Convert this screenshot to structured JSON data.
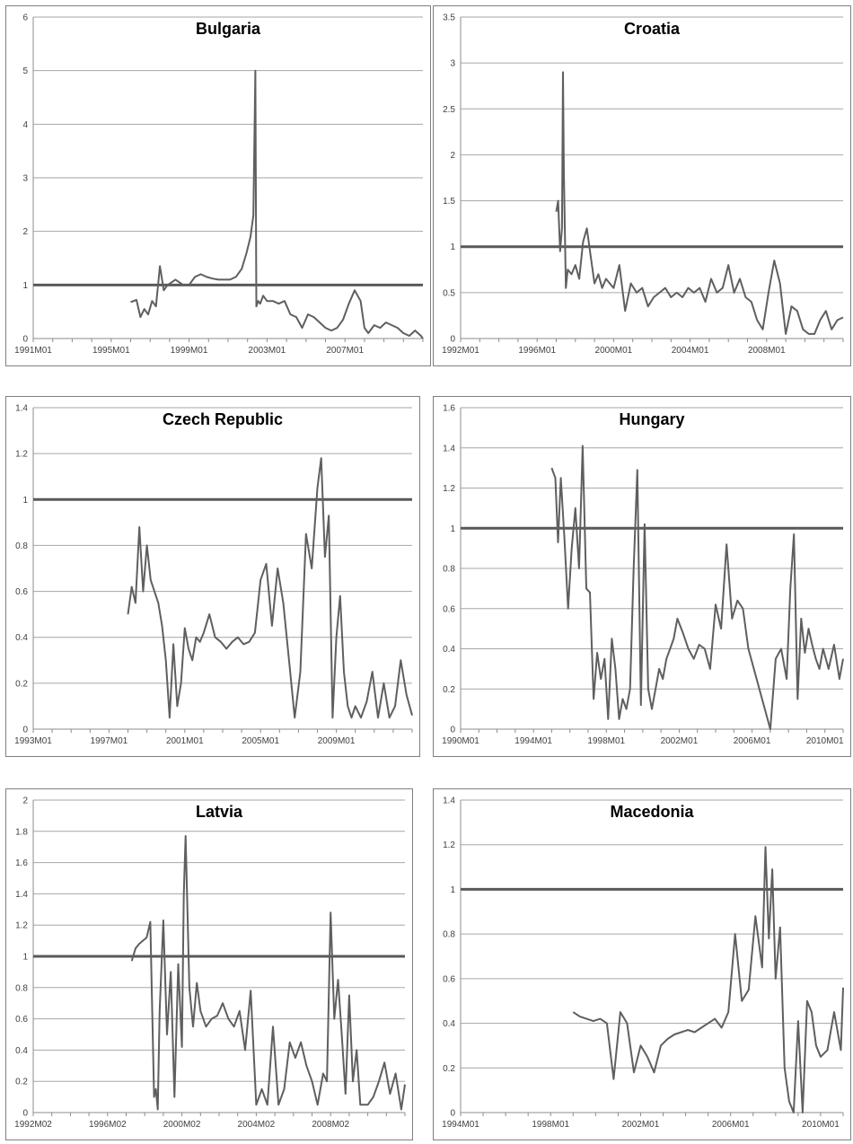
{
  "chart_data": [
    {
      "type": "line",
      "title": "Bulgaria",
      "ylim": [
        0,
        6
      ],
      "yticks": [
        "0",
        "1",
        "2",
        "3",
        "4",
        "5",
        "6"
      ],
      "xlim": [
        1991.0,
        2011.0
      ],
      "xticks": [
        "1991M01",
        "1995M01",
        "1999M01",
        "2003M01",
        "2007M01"
      ],
      "grid": true,
      "reference_line": 1,
      "series": [
        {
          "x": [
            1996.0,
            1996.3,
            1996.5,
            1996.7,
            1996.9,
            1997.1,
            1997.3,
            1997.5,
            1997.7,
            1997.9,
            1998.1,
            1998.3,
            1998.5,
            1998.7,
            1999.0,
            1999.3,
            1999.6,
            1999.9,
            2000.2,
            2000.5,
            2000.8,
            2001.1,
            2001.4,
            2001.7,
            2001.95,
            2002.15,
            2002.3,
            2002.4,
            2002.45,
            2002.55,
            2002.65,
            2002.8,
            2003.0,
            2003.3,
            2003.6,
            2003.9,
            2004.2,
            2004.5,
            2004.8,
            2005.1,
            2005.4,
            2005.7,
            2006.0,
            2006.3,
            2006.6,
            2006.9,
            2007.2,
            2007.5,
            2007.8,
            2008.0,
            2008.2,
            2008.5,
            2008.8,
            2009.1,
            2009.4,
            2009.7,
            2010.0,
            2010.3,
            2010.6,
            2010.9,
            2011.0
          ],
          "y": [
            0.68,
            0.72,
            0.4,
            0.55,
            0.45,
            0.7,
            0.6,
            1.35,
            0.9,
            1.0,
            1.05,
            1.1,
            1.05,
            1.0,
            1.0,
            1.15,
            1.2,
            1.15,
            1.12,
            1.1,
            1.1,
            1.1,
            1.15,
            1.3,
            1.6,
            1.9,
            2.3,
            5.0,
            0.6,
            0.7,
            0.65,
            0.8,
            0.7,
            0.7,
            0.65,
            0.7,
            0.45,
            0.4,
            0.2,
            0.45,
            0.4,
            0.3,
            0.2,
            0.15,
            0.2,
            0.35,
            0.65,
            0.9,
            0.7,
            0.2,
            0.1,
            0.25,
            0.2,
            0.3,
            0.25,
            0.2,
            0.1,
            0.05,
            0.15,
            0.05,
            0.0
          ]
        }
      ]
    },
    {
      "type": "line",
      "title": "Croatia",
      "ylim": [
        0,
        3.5
      ],
      "yticks": [
        "0",
        "0.5",
        "1",
        "1.5",
        "2",
        "2.5",
        "3",
        "3.5"
      ],
      "xlim": [
        1992.0,
        2012.0
      ],
      "xticks": [
        "1992M01",
        "1996M01",
        "2000M01",
        "2004M01",
        "2008M01"
      ],
      "grid": true,
      "reference_line": 1,
      "series": [
        {
          "x": [
            1997.0,
            1997.1,
            1997.2,
            1997.3,
            1997.35,
            1997.4,
            1997.5,
            1997.6,
            1997.8,
            1998.0,
            1998.2,
            1998.4,
            1998.6,
            1998.8,
            1999.0,
            1999.2,
            1999.4,
            1999.6,
            1999.8,
            2000.0,
            2000.3,
            2000.6,
            2000.9,
            2001.2,
            2001.5,
            2001.8,
            2002.1,
            2002.4,
            2002.7,
            2003.0,
            2003.3,
            2003.6,
            2003.9,
            2004.2,
            2004.5,
            2004.8,
            2005.1,
            2005.4,
            2005.7,
            2006.0,
            2006.3,
            2006.6,
            2006.9,
            2007.2,
            2007.5,
            2007.8,
            2008.1,
            2008.4,
            2008.7,
            2009.0,
            2009.3,
            2009.6,
            2009.9,
            2010.2,
            2010.5,
            2010.8,
            2011.1,
            2011.4,
            2011.7,
            2012.0
          ],
          "y": [
            1.38,
            1.5,
            0.95,
            1.2,
            2.9,
            1.8,
            0.55,
            0.75,
            0.7,
            0.8,
            0.65,
            1.05,
            1.2,
            0.9,
            0.6,
            0.7,
            0.55,
            0.65,
            0.6,
            0.55,
            0.8,
            0.3,
            0.6,
            0.5,
            0.55,
            0.35,
            0.45,
            0.5,
            0.55,
            0.45,
            0.5,
            0.45,
            0.55,
            0.5,
            0.55,
            0.4,
            0.65,
            0.5,
            0.55,
            0.8,
            0.5,
            0.65,
            0.45,
            0.4,
            0.2,
            0.1,
            0.5,
            0.85,
            0.6,
            0.05,
            0.35,
            0.3,
            0.1,
            0.05,
            0.05,
            0.2,
            0.3,
            0.1,
            0.2,
            0.23
          ]
        }
      ]
    },
    {
      "type": "line",
      "title": "Czech Republic",
      "ylim": [
        0,
        1.4
      ],
      "yticks": [
        "0",
        "0.2",
        "0.4",
        "0.6",
        "0.8",
        "1",
        "1.2",
        "1.4"
      ],
      "xlim": [
        1993.0,
        2013.0
      ],
      "xticks": [
        "1993M01",
        "1997M01",
        "2001M01",
        "2005M01",
        "2009M01"
      ],
      "grid": true,
      "reference_line": 1,
      "series": [
        {
          "x": [
            1998.0,
            1998.2,
            1998.4,
            1998.6,
            1998.8,
            1999.0,
            1999.2,
            1999.4,
            1999.6,
            1999.8,
            2000.0,
            2000.2,
            2000.4,
            2000.6,
            2000.8,
            2001.0,
            2001.2,
            2001.4,
            2001.6,
            2001.8,
            2002.0,
            2002.3,
            2002.6,
            2002.9,
            2003.2,
            2003.5,
            2003.8,
            2004.1,
            2004.4,
            2004.7,
            2005.0,
            2005.3,
            2005.6,
            2005.9,
            2006.2,
            2006.5,
            2006.8,
            2007.1,
            2007.4,
            2007.7,
            2008.0,
            2008.2,
            2008.4,
            2008.6,
            2008.8,
            2009.0,
            2009.2,
            2009.4,
            2009.6,
            2009.8,
            2010.0,
            2010.3,
            2010.6,
            2010.9,
            2011.2,
            2011.5,
            2011.8,
            2012.1,
            2012.4,
            2012.7,
            2013.0
          ],
          "y": [
            0.5,
            0.62,
            0.55,
            0.88,
            0.6,
            0.8,
            0.65,
            0.6,
            0.55,
            0.45,
            0.3,
            0.05,
            0.37,
            0.1,
            0.2,
            0.44,
            0.35,
            0.3,
            0.4,
            0.38,
            0.42,
            0.5,
            0.4,
            0.38,
            0.35,
            0.38,
            0.4,
            0.37,
            0.38,
            0.42,
            0.65,
            0.72,
            0.45,
            0.7,
            0.55,
            0.3,
            0.05,
            0.25,
            0.85,
            0.7,
            1.05,
            1.18,
            0.75,
            0.93,
            0.05,
            0.4,
            0.58,
            0.25,
            0.1,
            0.05,
            0.1,
            0.05,
            0.12,
            0.25,
            0.05,
            0.2,
            0.05,
            0.1,
            0.3,
            0.15,
            0.06
          ]
        }
      ]
    },
    {
      "type": "line",
      "title": "Hungary",
      "ylim": [
        0,
        1.6
      ],
      "yticks": [
        "0",
        "0.2",
        "0.4",
        "0.6",
        "0.8",
        "1",
        "1.2",
        "1.4",
        "1.6"
      ],
      "xlim": [
        1990.0,
        2011.0
      ],
      "xticks": [
        "1990M01",
        "1994M01",
        "1998M01",
        "2002M01",
        "2006M01",
        "2010M01"
      ],
      "grid": true,
      "reference_line": 1,
      "series": [
        {
          "x": [
            1995.0,
            1995.2,
            1995.35,
            1995.5,
            1995.7,
            1995.9,
            1996.1,
            1996.3,
            1996.5,
            1996.7,
            1996.9,
            1997.1,
            1997.3,
            1997.5,
            1997.7,
            1997.9,
            1998.1,
            1998.3,
            1998.5,
            1998.7,
            1998.9,
            1999.1,
            1999.3,
            1999.5,
            1999.7,
            1999.9,
            2000.1,
            2000.3,
            2000.5,
            2000.7,
            2000.9,
            2001.1,
            2001.3,
            2001.5,
            2001.7,
            2001.9,
            2002.2,
            2002.5,
            2002.8,
            2003.1,
            2003.4,
            2003.7,
            2004.0,
            2004.3,
            2004.6,
            2004.9,
            2005.2,
            2005.5,
            2005.8,
            2006.1,
            2006.4,
            2006.7,
            2007.0,
            2007.3,
            2007.6,
            2007.9,
            2008.1,
            2008.3,
            2008.5,
            2008.7,
            2008.9,
            2009.1,
            2009.3,
            2009.5,
            2009.7,
            2009.9,
            2010.2,
            2010.5,
            2010.8,
            2011.0
          ],
          "y": [
            1.3,
            1.25,
            0.93,
            1.25,
            0.95,
            0.6,
            0.9,
            1.1,
            0.8,
            1.41,
            0.7,
            0.68,
            0.15,
            0.38,
            0.25,
            0.35,
            0.05,
            0.45,
            0.3,
            0.05,
            0.15,
            0.1,
            0.2,
            0.8,
            1.29,
            0.12,
            1.02,
            0.2,
            0.1,
            0.2,
            0.3,
            0.25,
            0.35,
            0.4,
            0.45,
            0.55,
            0.48,
            0.4,
            0.35,
            0.42,
            0.4,
            0.3,
            0.62,
            0.5,
            0.92,
            0.55,
            0.64,
            0.6,
            0.4,
            0.3,
            0.2,
            0.1,
            0.0,
            0.35,
            0.4,
            0.25,
            0.7,
            0.97,
            0.15,
            0.55,
            0.38,
            0.5,
            0.42,
            0.35,
            0.3,
            0.4,
            0.3,
            0.42,
            0.25,
            0.35
          ]
        }
      ]
    },
    {
      "type": "line",
      "title": "Latvia",
      "ylim": [
        0,
        2
      ],
      "yticks": [
        "0",
        "0.2",
        "0.4",
        "0.6",
        "0.8",
        "1",
        "1.2",
        "1.4",
        "1.6",
        "1.8",
        "2"
      ],
      "xlim": [
        1992.0,
        2012.0
      ],
      "xticks": [
        "1992M02",
        "1996M02",
        "2000M02",
        "2004M02",
        "2008M02"
      ],
      "grid": true,
      "reference_line": 1,
      "series": [
        {
          "x": [
            1997.3,
            1997.5,
            1997.7,
            1997.9,
            1998.1,
            1998.3,
            1998.5,
            1998.6,
            1998.7,
            1998.8,
            1999.0,
            1999.2,
            1999.4,
            1999.6,
            1999.8,
            2000.0,
            2000.1,
            2000.2,
            2000.4,
            2000.6,
            2000.8,
            2001.0,
            2001.3,
            2001.6,
            2001.9,
            2002.2,
            2002.5,
            2002.8,
            2003.1,
            2003.4,
            2003.7,
            2004.0,
            2004.3,
            2004.6,
            2004.9,
            2005.2,
            2005.5,
            2005.8,
            2006.1,
            2006.4,
            2006.7,
            2007.0,
            2007.3,
            2007.6,
            2007.8,
            2008.0,
            2008.2,
            2008.4,
            2008.6,
            2008.8,
            2009.0,
            2009.2,
            2009.4,
            2009.6,
            2009.8,
            2010.0,
            2010.3,
            2010.6,
            2010.9,
            2011.2,
            2011.5,
            2011.8,
            2012.0
          ],
          "y": [
            0.97,
            1.05,
            1.08,
            1.1,
            1.12,
            1.22,
            0.1,
            0.15,
            0.02,
            0.65,
            1.23,
            0.5,
            0.9,
            0.1,
            0.95,
            0.42,
            1.4,
            1.77,
            0.8,
            0.55,
            0.83,
            0.65,
            0.55,
            0.6,
            0.62,
            0.7,
            0.6,
            0.55,
            0.65,
            0.4,
            0.78,
            0.05,
            0.15,
            0.05,
            0.55,
            0.05,
            0.15,
            0.45,
            0.35,
            0.45,
            0.3,
            0.2,
            0.05,
            0.25,
            0.2,
            1.28,
            0.6,
            0.85,
            0.5,
            0.12,
            0.75,
            0.2,
            0.4,
            0.05,
            0.05,
            0.05,
            0.1,
            0.2,
            0.32,
            0.12,
            0.25,
            0.02,
            0.18
          ]
        }
      ]
    },
    {
      "type": "line",
      "title": "Macedonia",
      "ylim": [
        0,
        1.4
      ],
      "yticks": [
        "0",
        "0.2",
        "0.4",
        "0.6",
        "0.8",
        "1",
        "1.2",
        "1.4"
      ],
      "xlim": [
        1994.0,
        2011.0
      ],
      "xticks": [
        "1994M01",
        "1998M01",
        "2002M01",
        "2006M01",
        "2010M01"
      ],
      "grid": true,
      "reference_line": 1,
      "series": [
        {
          "x": [
            1999.0,
            1999.3,
            1999.6,
            1999.9,
            2000.2,
            2000.5,
            2000.8,
            2001.1,
            2001.4,
            2001.7,
            2002.0,
            2002.3,
            2002.6,
            2002.9,
            2003.2,
            2003.5,
            2003.8,
            2004.1,
            2004.4,
            2004.7,
            2005.0,
            2005.3,
            2005.6,
            2005.9,
            2006.2,
            2006.5,
            2006.8,
            2007.1,
            2007.4,
            2007.55,
            2007.7,
            2007.85,
            2008.0,
            2008.2,
            2008.4,
            2008.6,
            2008.8,
            2009.0,
            2009.2,
            2009.4,
            2009.6,
            2009.8,
            2010.0,
            2010.3,
            2010.6,
            2010.9,
            2011.0
          ],
          "y": [
            0.45,
            0.43,
            0.42,
            0.41,
            0.42,
            0.4,
            0.15,
            0.45,
            0.4,
            0.18,
            0.3,
            0.25,
            0.18,
            0.3,
            0.33,
            0.35,
            0.36,
            0.37,
            0.36,
            0.38,
            0.4,
            0.42,
            0.38,
            0.45,
            0.8,
            0.5,
            0.55,
            0.88,
            0.65,
            1.19,
            0.78,
            1.09,
            0.6,
            0.83,
            0.2,
            0.05,
            0.0,
            0.41,
            0.0,
            0.5,
            0.45,
            0.3,
            0.25,
            0.28,
            0.45,
            0.28,
            0.56
          ]
        }
      ]
    }
  ]
}
